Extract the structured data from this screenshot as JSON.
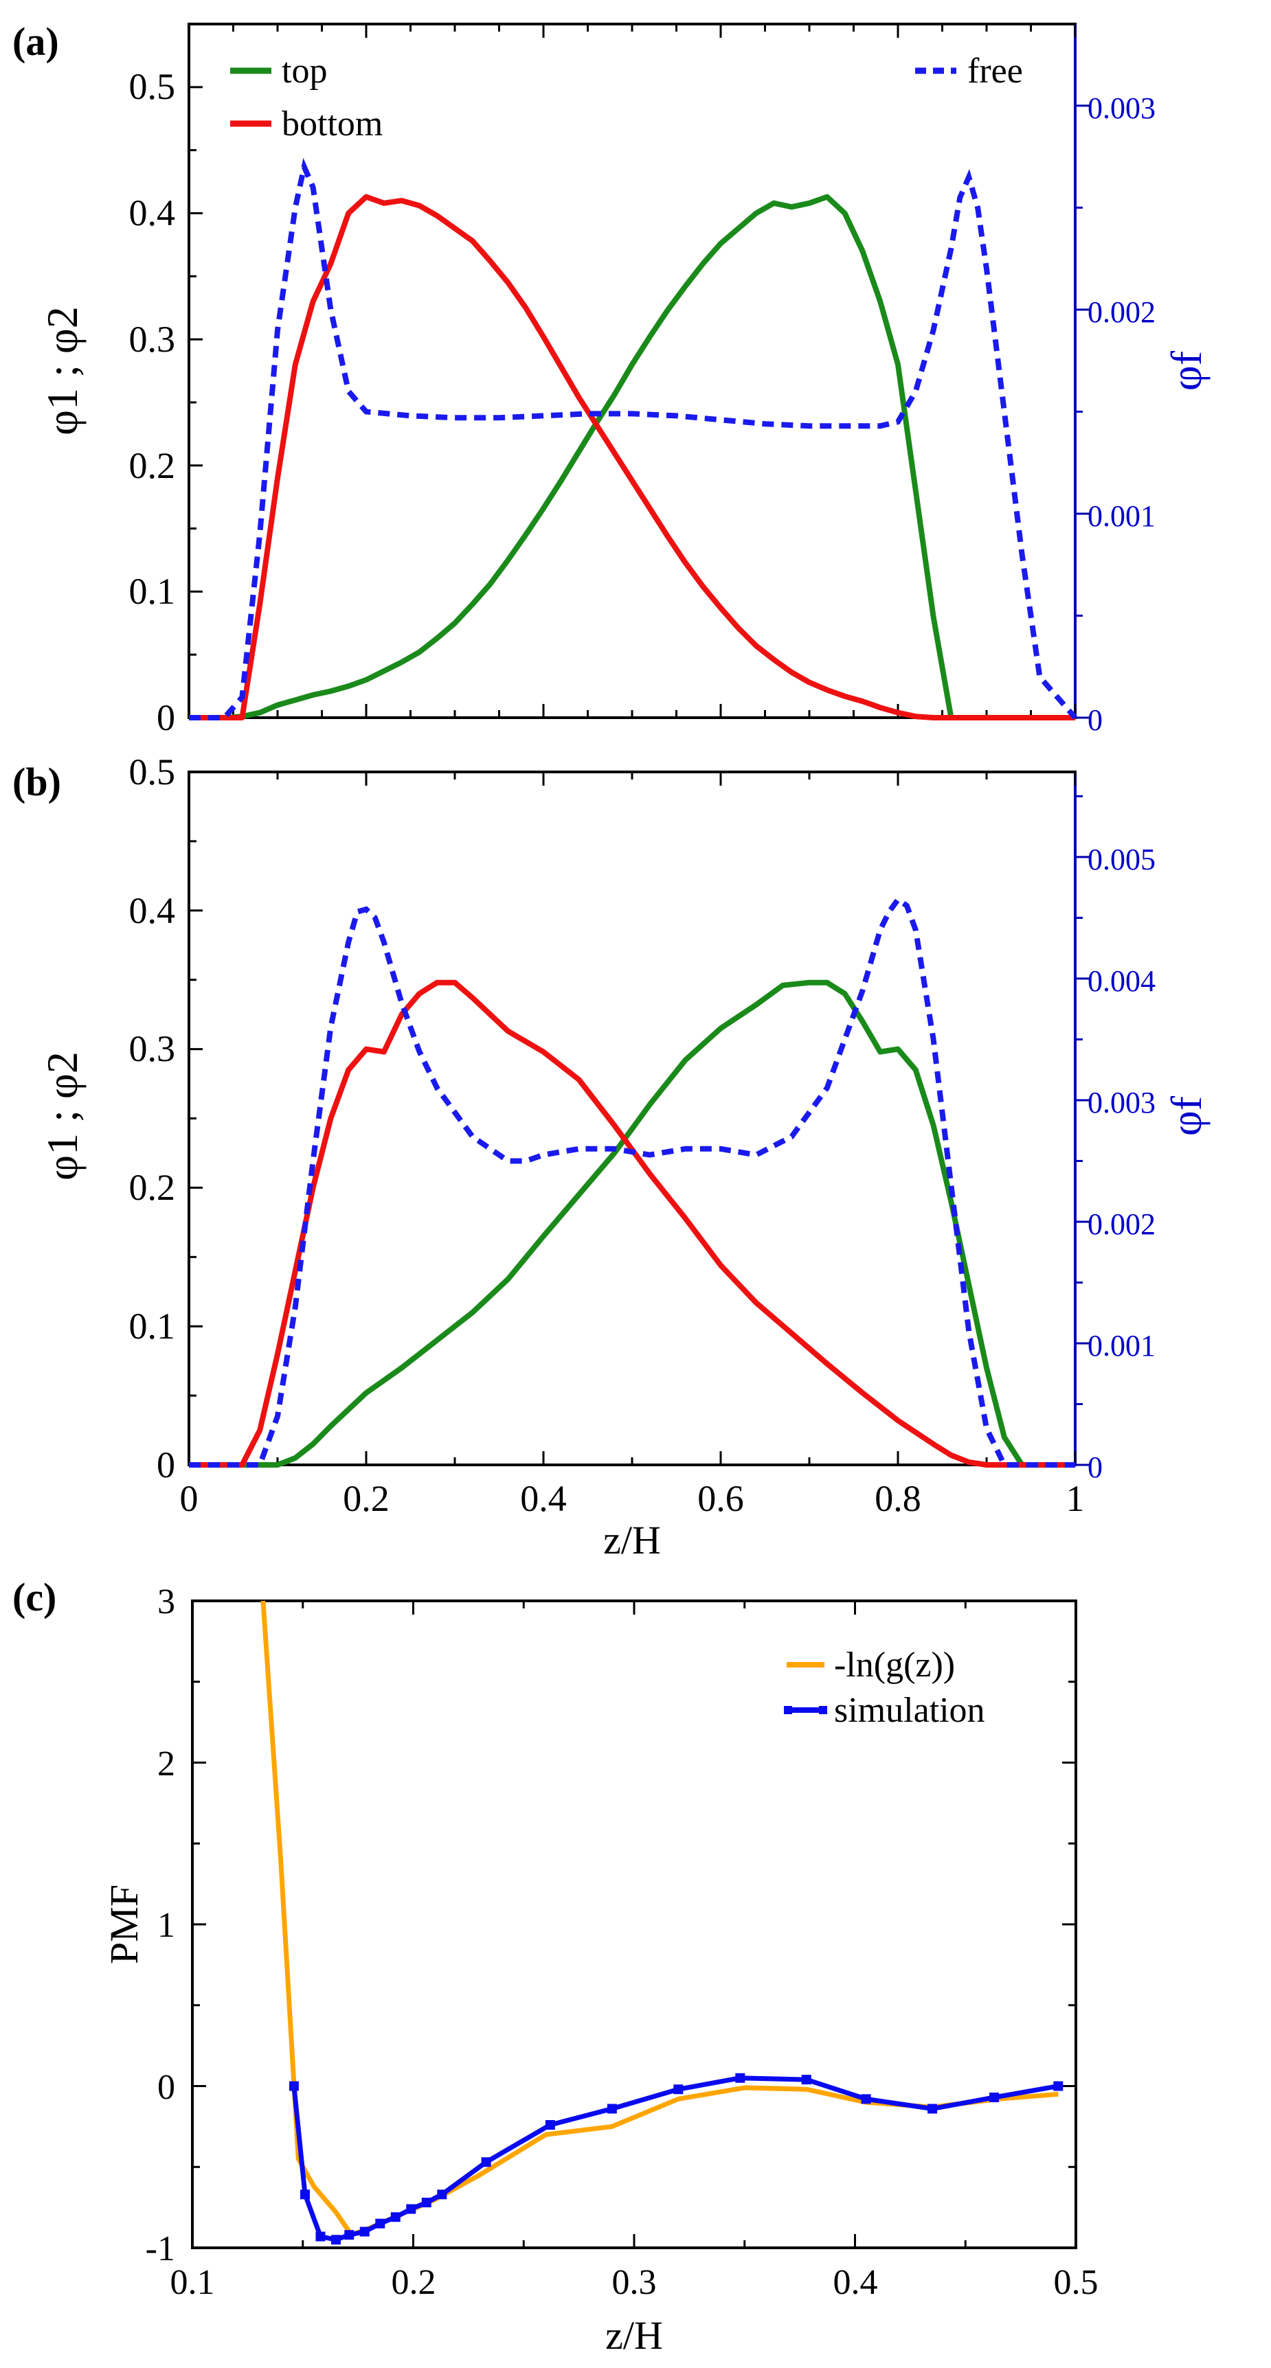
{
  "colors": {
    "top": "#1a8a1a",
    "bottom": "#ee1111",
    "free": "#1a1aee",
    "right_axis": "#0000aa",
    "lng": "#ffa500",
    "simulation": "#0a0aee"
  },
  "chart_data": [
    {
      "type": "line",
      "panel_label": "(a)",
      "ylabel": "φ1 ; φ2",
      "ylabel_right": "φf",
      "xlim": [
        0,
        1
      ],
      "ylim": [
        0,
        0.55
      ],
      "ylim_right": [
        0,
        0.0034
      ],
      "yticks": [
        "0",
        "0.1",
        "0.2",
        "0.3",
        "0.4",
        "0.5"
      ],
      "yticks_right": [
        "0",
        "0.001",
        "0.002",
        "0.003"
      ],
      "legend": {
        "top": "top",
        "bottom": "bottom",
        "free": "free"
      },
      "series": [
        {
          "name": "top",
          "axis": "left",
          "x": [
            0,
            0.04,
            0.06,
            0.08,
            0.1,
            0.12,
            0.14,
            0.16,
            0.18,
            0.2,
            0.22,
            0.24,
            0.26,
            0.28,
            0.3,
            0.32,
            0.34,
            0.36,
            0.38,
            0.4,
            0.42,
            0.44,
            0.46,
            0.48,
            0.5,
            0.52,
            0.54,
            0.56,
            0.58,
            0.6,
            0.62,
            0.64,
            0.66,
            0.68,
            0.7,
            0.72,
            0.74,
            0.76,
            0.78,
            0.8,
            0.82,
            0.84,
            0.86,
            0.88,
            0.9,
            0.92,
            0.94,
            0.96,
            1
          ],
          "y": [
            0,
            0,
            0.001,
            0.004,
            0.01,
            0.014,
            0.018,
            0.021,
            0.025,
            0.03,
            0.037,
            0.044,
            0.052,
            0.063,
            0.075,
            0.09,
            0.106,
            0.125,
            0.145,
            0.166,
            0.188,
            0.211,
            0.234,
            0.256,
            0.28,
            0.302,
            0.323,
            0.342,
            0.36,
            0.376,
            0.388,
            0.4,
            0.408,
            0.405,
            0.408,
            0.413,
            0.4,
            0.37,
            0.33,
            0.28,
            0.18,
            0.08,
            0,
            0,
            0,
            0,
            0,
            0,
            0
          ]
        },
        {
          "name": "bottom",
          "axis": "left",
          "x": [
            0,
            0.04,
            0.06,
            0.08,
            0.1,
            0.12,
            0.14,
            0.16,
            0.18,
            0.2,
            0.22,
            0.24,
            0.26,
            0.28,
            0.3,
            0.32,
            0.34,
            0.36,
            0.38,
            0.4,
            0.42,
            0.44,
            0.46,
            0.48,
            0.5,
            0.52,
            0.54,
            0.56,
            0.58,
            0.6,
            0.62,
            0.64,
            0.66,
            0.68,
            0.7,
            0.72,
            0.74,
            0.76,
            0.78,
            0.8,
            0.82,
            0.84,
            0.86,
            0.88,
            0.9,
            0.92,
            0.94,
            0.96,
            1
          ],
          "y": [
            0,
            0,
            0,
            0.09,
            0.19,
            0.28,
            0.33,
            0.36,
            0.4,
            0.413,
            0.408,
            0.41,
            0.406,
            0.398,
            0.388,
            0.378,
            0.362,
            0.345,
            0.325,
            0.302,
            0.278,
            0.254,
            0.232,
            0.21,
            0.188,
            0.166,
            0.144,
            0.123,
            0.104,
            0.087,
            0.071,
            0.057,
            0.046,
            0.036,
            0.028,
            0.022,
            0.017,
            0.013,
            0.008,
            0.004,
            0.001,
            0,
            0,
            0,
            0,
            0,
            0,
            0,
            0
          ]
        },
        {
          "name": "free",
          "axis": "right",
          "x": [
            0,
            0.04,
            0.06,
            0.08,
            0.1,
            0.12,
            0.13,
            0.14,
            0.15,
            0.16,
            0.18,
            0.2,
            0.25,
            0.3,
            0.35,
            0.4,
            0.45,
            0.5,
            0.55,
            0.6,
            0.65,
            0.7,
            0.75,
            0.78,
            0.8,
            0.82,
            0.84,
            0.86,
            0.87,
            0.88,
            0.89,
            0.9,
            0.92,
            0.94,
            0.96,
            1
          ],
          "y": [
            0,
            0,
            0.0001,
            0.0009,
            0.0019,
            0.0025,
            0.0027,
            0.0026,
            0.0023,
            0.002,
            0.0016,
            0.0015,
            0.00148,
            0.00147,
            0.00147,
            0.00148,
            0.00149,
            0.00149,
            0.00148,
            0.00146,
            0.00144,
            0.00143,
            0.00143,
            0.00143,
            0.00145,
            0.0016,
            0.0019,
            0.0023,
            0.00255,
            0.00265,
            0.0025,
            0.0022,
            0.0015,
            0.0008,
            0.0002,
            0
          ]
        }
      ]
    },
    {
      "type": "line",
      "panel_label": "(b)",
      "ylabel": "φ1 ; φ2",
      "ylabel_right": "φf",
      "xlabel": "z/H",
      "xlim": [
        0,
        1
      ],
      "ylim": [
        0,
        0.5
      ],
      "ylim_right": [
        0,
        0.0057
      ],
      "xticks": [
        "0",
        "0.2",
        "0.4",
        "0.6",
        "0.8",
        "1"
      ],
      "yticks": [
        "0",
        "0.1",
        "0.2",
        "0.3",
        "0.4",
        "0.5"
      ],
      "yticks_right": [
        "0",
        "0.001",
        "0.002",
        "0.003",
        "0.004",
        "0.005"
      ],
      "series": [
        {
          "name": "top",
          "axis": "left",
          "x": [
            0,
            0.06,
            0.1,
            0.12,
            0.14,
            0.16,
            0.18,
            0.2,
            0.24,
            0.28,
            0.32,
            0.36,
            0.4,
            0.44,
            0.48,
            0.52,
            0.56,
            0.6,
            0.64,
            0.67,
            0.7,
            0.72,
            0.74,
            0.76,
            0.78,
            0.8,
            0.82,
            0.84,
            0.86,
            0.88,
            0.9,
            0.92,
            0.94,
            0.96,
            1
          ],
          "y": [
            0,
            0,
            0,
            0.005,
            0.015,
            0.028,
            0.04,
            0.052,
            0.07,
            0.09,
            0.11,
            0.134,
            0.165,
            0.195,
            0.225,
            0.26,
            0.292,
            0.315,
            0.332,
            0.346,
            0.348,
            0.348,
            0.34,
            0.32,
            0.298,
            0.3,
            0.285,
            0.245,
            0.19,
            0.13,
            0.07,
            0.02,
            0,
            0,
            0
          ]
        },
        {
          "name": "bottom",
          "axis": "left",
          "x": [
            0,
            0.04,
            0.06,
            0.08,
            0.1,
            0.12,
            0.14,
            0.16,
            0.18,
            0.2,
            0.22,
            0.24,
            0.26,
            0.28,
            0.3,
            0.32,
            0.34,
            0.36,
            0.4,
            0.44,
            0.48,
            0.52,
            0.56,
            0.6,
            0.64,
            0.68,
            0.72,
            0.76,
            0.8,
            0.84,
            0.86,
            0.88,
            0.9,
            0.92,
            1
          ],
          "y": [
            0,
            0,
            0,
            0.025,
            0.08,
            0.14,
            0.2,
            0.25,
            0.285,
            0.3,
            0.298,
            0.325,
            0.34,
            0.348,
            0.348,
            0.337,
            0.325,
            0.313,
            0.298,
            0.278,
            0.245,
            0.21,
            0.178,
            0.144,
            0.117,
            0.095,
            0.073,
            0.052,
            0.032,
            0.015,
            0.007,
            0.002,
            0,
            0,
            0
          ]
        },
        {
          "name": "free",
          "axis": "right",
          "x": [
            0,
            0.04,
            0.06,
            0.08,
            0.1,
            0.12,
            0.14,
            0.16,
            0.18,
            0.19,
            0.2,
            0.21,
            0.22,
            0.24,
            0.26,
            0.28,
            0.3,
            0.32,
            0.34,
            0.36,
            0.38,
            0.4,
            0.44,
            0.48,
            0.52,
            0.56,
            0.6,
            0.64,
            0.68,
            0.72,
            0.74,
            0.76,
            0.78,
            0.79,
            0.8,
            0.81,
            0.82,
            0.84,
            0.86,
            0.88,
            0.9,
            0.92,
            1
          ],
          "y": [
            0,
            0,
            0,
            0,
            0.0004,
            0.0013,
            0.0025,
            0.0036,
            0.0043,
            0.00455,
            0.00457,
            0.0045,
            0.0043,
            0.0038,
            0.0034,
            0.0031,
            0.0029,
            0.0027,
            0.0026,
            0.0025,
            0.0025,
            0.00255,
            0.0026,
            0.0026,
            0.00255,
            0.0026,
            0.0026,
            0.00255,
            0.0027,
            0.0031,
            0.0035,
            0.0039,
            0.0044,
            0.00455,
            0.00465,
            0.0046,
            0.0044,
            0.0035,
            0.0023,
            0.0011,
            0.0003,
            0,
            0
          ]
        }
      ]
    },
    {
      "type": "line",
      "panel_label": "(c)",
      "xlabel": "z/H",
      "ylabel": "PMF",
      "xlim": [
        0.1,
        0.5
      ],
      "ylim": [
        -1,
        3
      ],
      "xticks": [
        "0.1",
        "0.2",
        "0.3",
        "0.4",
        "0.5"
      ],
      "yticks": [
        "-1",
        "0",
        "1",
        "2",
        "3"
      ],
      "legend": {
        "lng": "-ln(g(z))",
        "simulation": "simulation"
      },
      "series": [
        {
          "name": "-ln(g(z))",
          "x": [
            0.132,
            0.14,
            0.148,
            0.155,
            0.165,
            0.172,
            0.18,
            0.19,
            0.2,
            0.21,
            0.23,
            0.26,
            0.29,
            0.32,
            0.35,
            0.378,
            0.405,
            0.435,
            0.465,
            0.492
          ],
          "y": [
            3.0,
            1.4,
            -0.45,
            -0.62,
            -0.78,
            -0.92,
            -0.88,
            -0.82,
            -0.76,
            -0.7,
            -0.55,
            -0.3,
            -0.25,
            -0.08,
            -0.01,
            -0.02,
            -0.1,
            -0.13,
            -0.08,
            -0.05
          ]
        },
        {
          "name": "simulation",
          "x": [
            0.146,
            0.151,
            0.158,
            0.165,
            0.171,
            0.178,
            0.185,
            0.192,
            0.199,
            0.206,
            0.213,
            0.233,
            0.262,
            0.29,
            0.32,
            0.348,
            0.378,
            0.405,
            0.435,
            0.463,
            0.492
          ],
          "y": [
            0,
            -0.67,
            -0.93,
            -0.95,
            -0.92,
            -0.9,
            -0.85,
            -0.81,
            -0.76,
            -0.72,
            -0.67,
            -0.47,
            -0.24,
            -0.14,
            -0.02,
            0.05,
            0.04,
            -0.08,
            -0.14,
            -0.07,
            0
          ]
        }
      ]
    }
  ]
}
